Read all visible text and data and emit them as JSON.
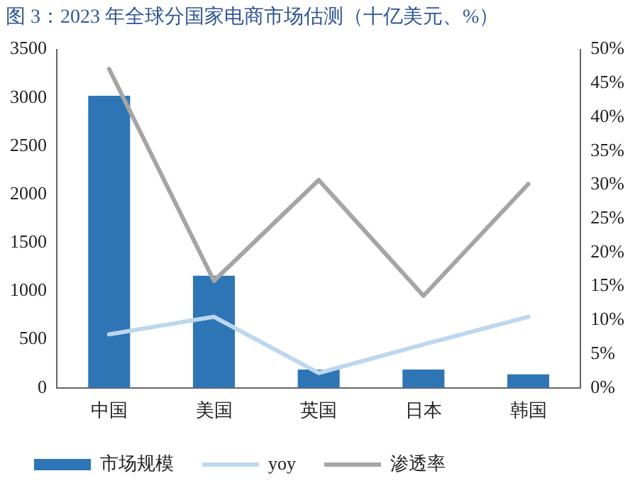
{
  "chart_data": {
    "type": "bar",
    "title": "图 3：2023 年全球分国家电商市场估测（十亿美元、%）",
    "categories": [
      "中国",
      "美国",
      "英国",
      "日本",
      "韩国"
    ],
    "series": [
      {
        "name": "市场规模",
        "color": "#2e75b6",
        "values": [
          3020,
          1160,
          190,
          190,
          140
        ]
      },
      {
        "name": "yoy",
        "type": "line",
        "axis": "y2",
        "color": "#bdd7ee",
        "values": [
          7.9,
          10.5,
          2.2,
          6.4,
          10.5
        ]
      },
      {
        "name": "渗透率",
        "type": "line",
        "axis": "y2",
        "color": "#a5a5a5",
        "values": [
          47.1,
          15.8,
          30.7,
          13.6,
          30.1
        ]
      }
    ],
    "ylim": [
      0,
      3500
    ],
    "yticks": [
      0,
      500,
      1000,
      1500,
      2000,
      2500,
      3000,
      3500
    ],
    "y2lim": [
      0,
      50
    ],
    "y2ticks": [
      {
        "value": 0,
        "label": "0%"
      },
      {
        "value": 5,
        "label": "5%"
      },
      {
        "value": 10,
        "label": "10%"
      },
      {
        "value": 15,
        "label": "15%"
      },
      {
        "value": 20,
        "label": "20%"
      },
      {
        "value": 25,
        "label": "25%"
      },
      {
        "value": 30,
        "label": "30%"
      },
      {
        "value": 35,
        "label": "35%"
      },
      {
        "value": 40,
        "label": "40%"
      },
      {
        "value": 45,
        "label": "45%"
      },
      {
        "value": 50,
        "label": "50%"
      }
    ],
    "grid": false,
    "legend": "bottom",
    "marker": "none",
    "line_style": "solid"
  }
}
